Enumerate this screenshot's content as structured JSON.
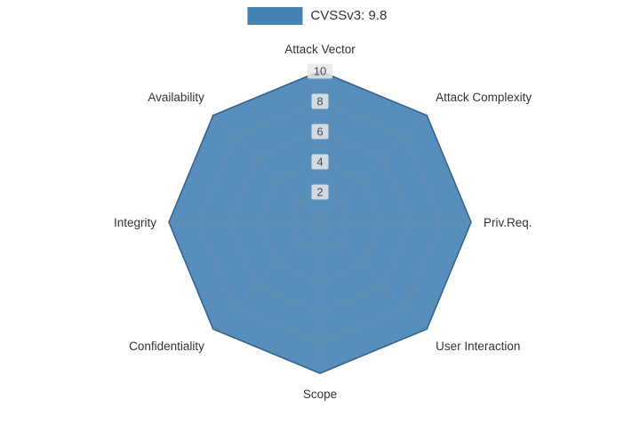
{
  "legend": {
    "label": "CVSSv3: 9.8",
    "swatch_color": "#4682b4"
  },
  "chart_data": {
    "type": "radar",
    "title": "CVSSv3: 9.8",
    "categories": [
      "Attack Vector",
      "Attack Complexity",
      "Priv.Req.",
      "User Interaction",
      "Scope",
      "Confidentiality",
      "Integrity",
      "Availability"
    ],
    "series": [
      {
        "name": "CVSSv3: 9.8",
        "values": [
          10,
          10,
          10,
          10,
          10,
          10,
          10,
          10
        ]
      }
    ],
    "rlim": [
      0,
      10
    ],
    "ticks": [
      2,
      4,
      6,
      8,
      10
    ],
    "grid": true,
    "legend_position": "top-center",
    "fill_color": "#4682b4",
    "fill_opacity": 0.9,
    "line_color": "#36638e",
    "grid_color": "#8c8c8c",
    "grid_opacity": 0.45,
    "label_color": "#333333",
    "tick_label_color": "#4d4d4d",
    "tick_label_bg": "#e9e9e9"
  }
}
